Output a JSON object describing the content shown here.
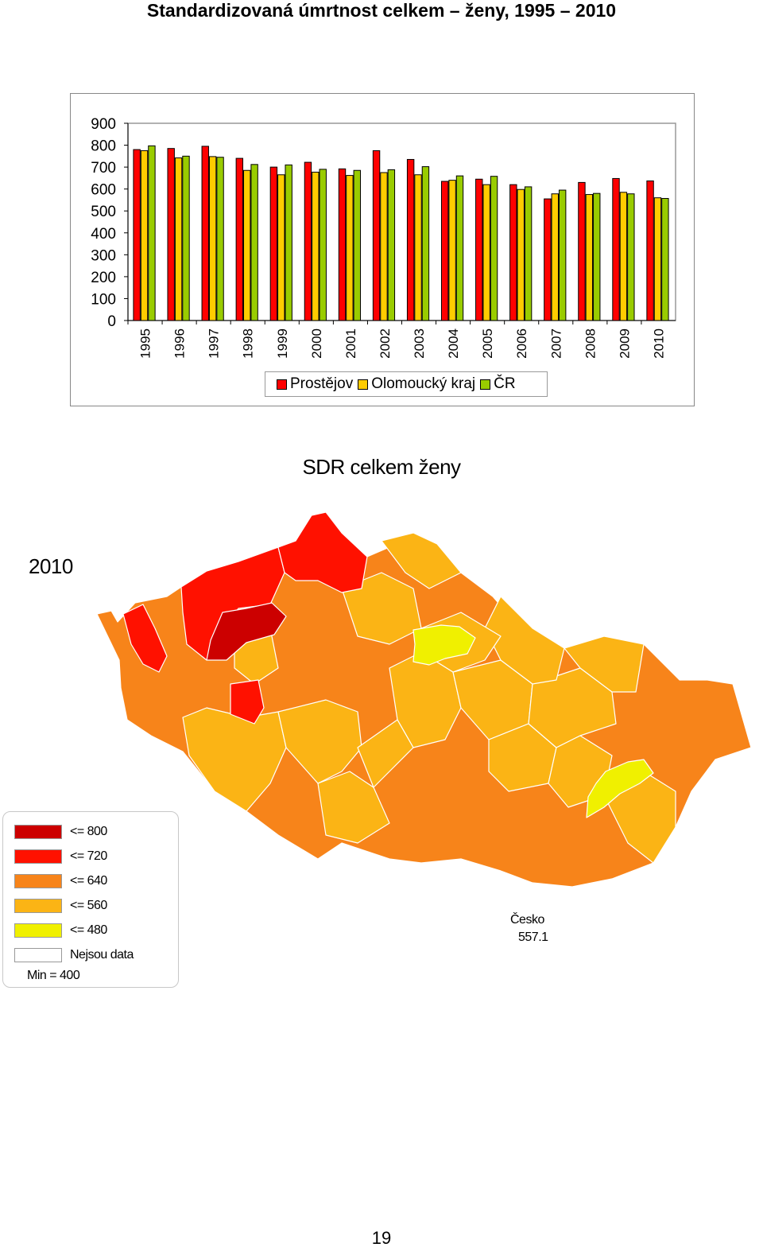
{
  "page_title": "Standardizovaná úmrtnost celkem – ženy, 1995 – 2010",
  "colors": {
    "prostejov": "#ff0000",
    "olomoucky_kraj": "#ffcc00",
    "cr": "#99cc00",
    "map_800": "#cc0000",
    "map_720": "#ff1100",
    "map_640": "#f7841a",
    "map_560": "#fbb415",
    "map_480": "#f0f000",
    "map_nodata": "#ffffff"
  },
  "chart_data": {
    "type": "bar",
    "categories": [
      "1995",
      "1996",
      "1997",
      "1998",
      "1999",
      "2000",
      "2001",
      "2002",
      "2003",
      "2004",
      "2005",
      "2006",
      "2007",
      "2008",
      "2009",
      "2010"
    ],
    "series": [
      {
        "name": "Prostějov",
        "values": [
          780,
          785,
          795,
          740,
          700,
          722,
          692,
          775,
          735,
          635,
          645,
          620,
          555,
          630,
          648,
          637
        ]
      },
      {
        "name": "Olomoucký kraj",
        "values": [
          775,
          742,
          748,
          685,
          665,
          677,
          662,
          675,
          665,
          640,
          620,
          598,
          578,
          575,
          585,
          560
        ]
      },
      {
        "name": "ČR",
        "values": [
          797,
          750,
          745,
          712,
          710,
          690,
          685,
          688,
          702,
          660,
          658,
          610,
          595,
          580,
          578,
          557
        ]
      }
    ],
    "yticks": [
      "900",
      "800",
      "700",
      "600",
      "500",
      "400",
      "300",
      "200",
      "100",
      "0"
    ],
    "ylim": [
      0,
      900
    ],
    "title": "",
    "xlabel": "",
    "ylabel": "",
    "legend_position": "bottom"
  },
  "map": {
    "title": "SDR celkem ženy",
    "year": "2010",
    "legend": {
      "items": [
        {
          "label": "<= 800",
          "color": "#cc0000"
        },
        {
          "label": "<= 720",
          "color": "#ff1100"
        },
        {
          "label": "<= 640",
          "color": "#f7841a"
        },
        {
          "label": "<= 560",
          "color": "#fbb415"
        },
        {
          "label": "<= 480",
          "color": "#f0f000"
        },
        {
          "label": "Nejsou data",
          "color": "#ffffff"
        }
      ],
      "min_label": "Min = 400"
    },
    "country_label": "Česko",
    "country_value": "557.1"
  },
  "page_number": "19"
}
